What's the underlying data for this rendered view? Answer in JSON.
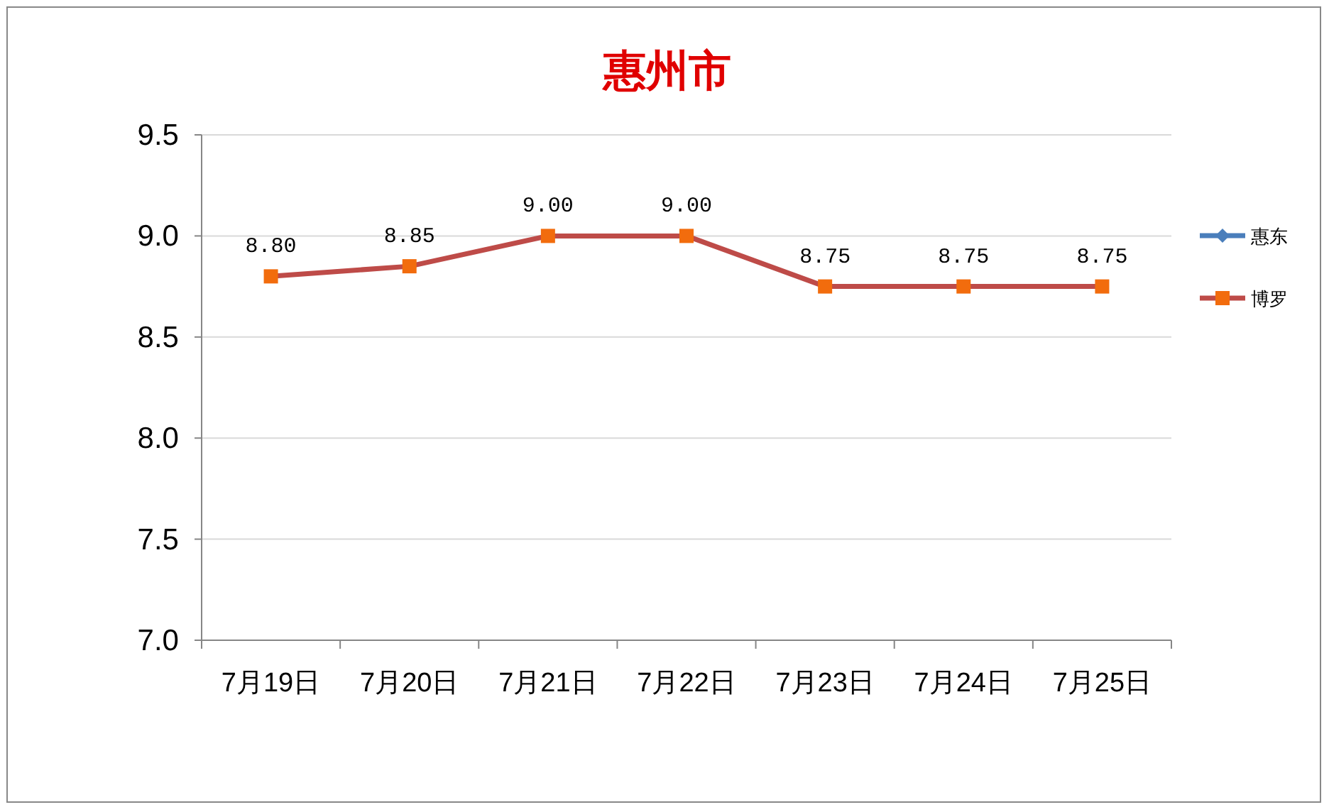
{
  "chart_data": {
    "type": "line",
    "title": "惠州市",
    "categories": [
      "7月19日",
      "7月20日",
      "7月21日",
      "7月22日",
      "7月23日",
      "7月24日",
      "7月25日"
    ],
    "series": [
      {
        "name": "惠东",
        "color": "#4a7ebb",
        "marker": "diamond",
        "values": [
          null,
          null,
          null,
          null,
          null,
          null,
          null
        ]
      },
      {
        "name": "博罗",
        "color": "#be4b48",
        "colors": [
          "#f26c0d",
          "#f26c0d",
          "#f26c0d",
          "#f26c0d",
          "#f26c0d",
          "#f26c0d",
          "#f26c0d"
        ],
        "marker": "square",
        "values": [
          8.8,
          8.85,
          9.0,
          9.0,
          8.75,
          8.75,
          8.75
        ],
        "value_labels": [
          "8.80",
          "8.85",
          "9.00",
          "9.00",
          "8.75",
          "8.75",
          "8.75"
        ]
      }
    ],
    "ylim": [
      7,
      9.5
    ],
    "yticks": [
      {
        "value": 7,
        "label": "7.0"
      },
      {
        "value": 7.5,
        "label": "7.5"
      },
      {
        "value": 8,
        "label": "8.0"
      },
      {
        "value": 8.5,
        "label": "8.5"
      },
      {
        "value": 9,
        "label": "9.0"
      },
      {
        "value": 9.5,
        "label": "9.5"
      }
    ],
    "grid": "y",
    "legend": "right"
  }
}
